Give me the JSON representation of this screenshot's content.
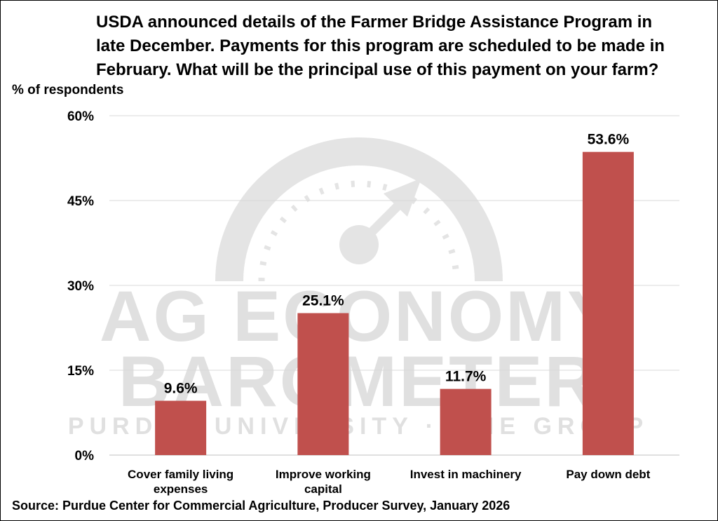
{
  "chart_data": {
    "type": "bar",
    "title": "USDA announced details of the Farmer Bridge Assistance Program in\nlate December.  Payments for this program are scheduled to be made in\nFebruary.  What will be the principal use of this payment on your farm?",
    "ylabel": "% of respondents",
    "xlabel": "",
    "categories": [
      [
        "Cover family living",
        "expenses"
      ],
      [
        "Improve working",
        "capital"
      ],
      [
        "Invest in machinery"
      ],
      [
        "Pay down debt"
      ]
    ],
    "values": [
      9.6,
      25.1,
      11.7,
      53.6
    ],
    "data_labels": [
      "9.6%",
      "25.1%",
      "11.7%",
      "53.6%"
    ],
    "ylim": [
      0,
      60
    ],
    "yticks": [
      0,
      15,
      30,
      45,
      60
    ],
    "ytick_labels": [
      "0%",
      "15%",
      "30%",
      "45%",
      "60%"
    ],
    "grid": true,
    "legend": "none",
    "bar_color": "#c0504d",
    "grid_color": "#d9d9d9"
  },
  "watermark": {
    "line1": "AG ECONOMY",
    "line2": "BAROMETER",
    "line3": "PURDUE UNIVERSITY · CME GROUP"
  },
  "source": "Source: Purdue Center for Commercial Agriculture, Producer Survey, January 2026"
}
